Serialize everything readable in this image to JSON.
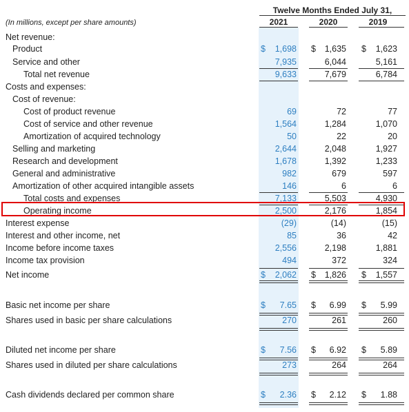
{
  "header": {
    "period_title": "Twelve Months Ended July 31,",
    "years": [
      "2021",
      "2020",
      "2019"
    ],
    "units_note": "(In millions, except per share amounts)"
  },
  "rows": [
    {
      "label": "Net revenue:",
      "values": [
        "",
        "",
        ""
      ],
      "currency": false
    },
    {
      "label": "Product",
      "values": [
        "1,698",
        "1,635",
        "1,623"
      ],
      "currency": true
    },
    {
      "label": "Service and other",
      "values": [
        "7,935",
        "6,044",
        "5,161"
      ],
      "currency": false
    },
    {
      "label": "Total net revenue",
      "values": [
        "9,633",
        "7,679",
        "6,784"
      ],
      "currency": false
    },
    {
      "label": "Costs and expenses:",
      "values": [
        "",
        "",
        ""
      ],
      "currency": false
    },
    {
      "label": "Cost of revenue:",
      "values": [
        "",
        "",
        ""
      ],
      "currency": false
    },
    {
      "label": "Cost of product revenue",
      "values": [
        "69",
        "72",
        "77"
      ],
      "currency": false
    },
    {
      "label": "Cost of service and other revenue",
      "values": [
        "1,564",
        "1,284",
        "1,070"
      ],
      "currency": false
    },
    {
      "label": "Amortization of acquired technology",
      "values": [
        "50",
        "22",
        "20"
      ],
      "currency": false
    },
    {
      "label": "Selling and marketing",
      "values": [
        "2,644",
        "2,048",
        "1,927"
      ],
      "currency": false
    },
    {
      "label": "Research and development",
      "values": [
        "1,678",
        "1,392",
        "1,233"
      ],
      "currency": false
    },
    {
      "label": "General and administrative",
      "values": [
        "982",
        "679",
        "597"
      ],
      "currency": false
    },
    {
      "label": "Amortization of other acquired intangible assets",
      "values": [
        "146",
        "6",
        "6"
      ],
      "currency": false
    },
    {
      "label": "Total costs and expenses",
      "values": [
        "7,133",
        "5,503",
        "4,930"
      ],
      "currency": false
    },
    {
      "label": "Operating income",
      "values": [
        "2,500",
        "2,176",
        "1,854"
      ],
      "currency": false
    },
    {
      "label": "Interest expense",
      "values": [
        "(29)",
        "(14)",
        "(15)"
      ],
      "currency": false
    },
    {
      "label": "Interest and other income, net",
      "values": [
        "85",
        "36",
        "42"
      ],
      "currency": false
    },
    {
      "label": "Income before income taxes",
      "values": [
        "2,556",
        "2,198",
        "1,881"
      ],
      "currency": false
    },
    {
      "label": "Income tax provision",
      "values": [
        "494",
        "372",
        "324"
      ],
      "currency": false
    },
    {
      "label": "Net income",
      "values": [
        "2,062",
        "1,826",
        "1,557"
      ],
      "currency": true
    },
    {
      "label": "Basic net income per share",
      "values": [
        "7.65",
        "6.99",
        "5.99"
      ],
      "currency": true
    },
    {
      "label": "Shares used in basic per share calculations",
      "values": [
        "270",
        "261",
        "260"
      ],
      "currency": false
    },
    {
      "label": "Diluted net income per share",
      "values": [
        "7.56",
        "6.92",
        "5.89"
      ],
      "currency": true
    },
    {
      "label": "Shares used in diluted per share calculations",
      "values": [
        "273",
        "264",
        "264"
      ],
      "currency": false
    },
    {
      "label": "Cash dividends declared per common share",
      "values": [
        "2.36",
        "2.12",
        "1.88"
      ],
      "currency": true
    }
  ],
  "currency_symbol": "$",
  "colors": {
    "highlight_column_bg": "#e6f2fb",
    "highlight_column_text": "#2e7fc1",
    "box_border": "#e00000"
  }
}
